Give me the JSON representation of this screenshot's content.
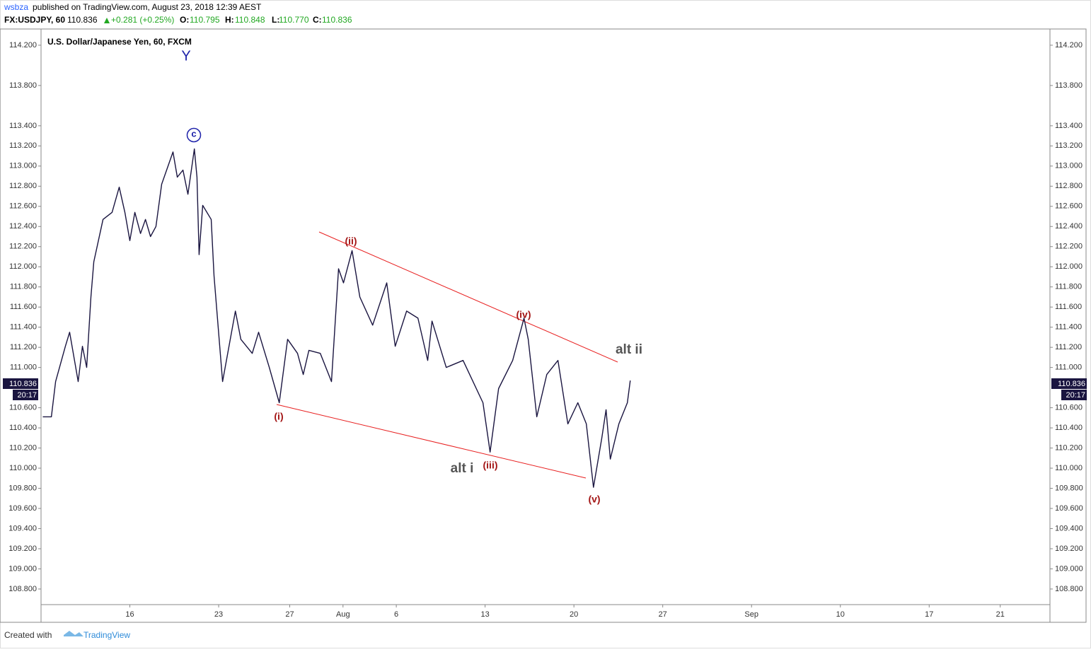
{
  "header": {
    "author": "wsbza",
    "published": "published on TradingView.com, August 23, 2018 12:39 AEST"
  },
  "legend": {
    "symbol": "FX:USDJPY, 60",
    "last": "110.836",
    "change": "+0.281 (+0.25%)",
    "open_label": "O:",
    "open": "110.795",
    "high_label": "H:",
    "high": "110.848",
    "low_label": "L:",
    "low": "110.770",
    "close_label": "C:",
    "close": "110.836"
  },
  "chart_data": {
    "type": "line",
    "title": "U.S. Dollar/Japanese Yen, 60, FXCM",
    "x": [
      -4.9,
      -4.42,
      -4.18,
      -3.63,
      -3.39,
      -2.91,
      -2.67,
      -2.43,
      -2.19,
      -2.03,
      -1.51,
      -1.0,
      -0.6,
      -0.28,
      0,
      0.28,
      0.6,
      0.88,
      1.16,
      1.47,
      1.79,
      2.43,
      2.67,
      2.99,
      3.27,
      3.63,
      3.78,
      3.9,
      4.1,
      4.58,
      4.74,
      5.22,
      5.94,
      6.25,
      6.89,
      7.25,
      7.85,
      8.41,
      8.88,
      9.44,
      9.76,
      10.08,
      10.72,
      11.35,
      11.75,
      12.03,
      12.51,
      12.95,
      13.67,
      14.46,
      14.94,
      15.58,
      16.22,
      16.77,
      17.01,
      17.81,
      18.76,
      19.88,
      20.28,
      20.76,
      21.55,
      22.19,
      22.43,
      22.91,
      23.47,
      24.1,
      24.66,
      25.22,
      25.7,
      26.1,
      26.57,
      26.81,
      27.05,
      27.53,
      28.01,
      28.17
    ],
    "series": [
      {
        "color": "#1a1540",
        "values": [
          110.51,
          110.51,
          110.86,
          111.21,
          111.35,
          110.86,
          111.21,
          111.0,
          111.7,
          112.05,
          112.47,
          112.54,
          112.79,
          112.54,
          112.26,
          112.54,
          112.33,
          112.47,
          112.3,
          112.4,
          112.82,
          113.14,
          112.89,
          112.96,
          112.72,
          113.17,
          112.89,
          112.12,
          112.61,
          112.47,
          111.91,
          110.86,
          111.56,
          111.28,
          111.14,
          111.35,
          111.0,
          110.65,
          111.28,
          111.14,
          110.93,
          111.17,
          111.14,
          110.86,
          111.98,
          111.84,
          112.16,
          111.7,
          111.42,
          111.84,
          111.21,
          111.56,
          111.49,
          111.07,
          111.46,
          111.0,
          111.07,
          110.65,
          110.16,
          110.79,
          111.07,
          111.49,
          111.28,
          110.51,
          110.93,
          111.07,
          110.44,
          110.65,
          110.44,
          109.81,
          110.3,
          110.58,
          110.09,
          110.44,
          110.65,
          110.87
        ]
      }
    ],
    "xlim": [
      -5,
      51.8
    ],
    "xticks": [
      {
        "value": 0,
        "label": "16"
      },
      {
        "value": 5,
        "label": "23"
      },
      {
        "value": 9,
        "label": "27"
      },
      {
        "value": 12,
        "label": "Aug"
      },
      {
        "value": 15,
        "label": "6"
      },
      {
        "value": 20,
        "label": "13"
      },
      {
        "value": 25,
        "label": "20"
      },
      {
        "value": 30,
        "label": "27"
      },
      {
        "value": 35,
        "label": "Sep"
      },
      {
        "value": 40,
        "label": "10"
      },
      {
        "value": 45,
        "label": "17"
      },
      {
        "value": 49,
        "label": "21"
      }
    ],
    "ylim": [
      108.645,
      114.34
    ],
    "yticks": [
      {
        "value": 114.2,
        "label": "114.200"
      },
      {
        "value": 113.8,
        "label": "113.800"
      },
      {
        "value": 113.4,
        "label": "113.400"
      },
      {
        "value": 113.2,
        "label": "113.200"
      },
      {
        "value": 113.0,
        "label": "113.000"
      },
      {
        "value": 112.8,
        "label": "112.800"
      },
      {
        "value": 112.6,
        "label": "112.600"
      },
      {
        "value": 112.4,
        "label": "112.400"
      },
      {
        "value": 112.2,
        "label": "112.200"
      },
      {
        "value": 112.0,
        "label": "112.000"
      },
      {
        "value": 111.8,
        "label": "111.800"
      },
      {
        "value": 111.6,
        "label": "111.600"
      },
      {
        "value": 111.4,
        "label": "111.400"
      },
      {
        "value": 111.2,
        "label": "111.200"
      },
      {
        "value": 111.0,
        "label": "111.000"
      },
      {
        "value": 110.6,
        "label": "110.600"
      },
      {
        "value": 110.4,
        "label": "110.400"
      },
      {
        "value": 110.2,
        "label": "110.200"
      },
      {
        "value": 110.0,
        "label": "110.000"
      },
      {
        "value": 109.8,
        "label": "109.800"
      },
      {
        "value": 109.6,
        "label": "109.600"
      },
      {
        "value": 109.4,
        "label": "109.400"
      },
      {
        "value": 109.2,
        "label": "109.200"
      },
      {
        "value": 109.0,
        "label": "109.000"
      },
      {
        "value": 108.8,
        "label": "108.800"
      }
    ],
    "grid": false,
    "last_price": {
      "value": 110.836,
      "label": "110.836"
    },
    "countdown": "20:17",
    "annotations": [
      {
        "text": "Y",
        "color": "#1e22aa"
      },
      {
        "text": "c",
        "color": "#1e22aa"
      },
      {
        "text": "(i)",
        "color": "#a31515"
      },
      {
        "text": "(ii)",
        "color": "#a31515"
      },
      {
        "text": "(iii)",
        "color": "#a31515"
      },
      {
        "text": "(iv)",
        "color": "#a31515"
      },
      {
        "text": "(v)",
        "color": "#a31515"
      },
      {
        "text": "alt i",
        "color": "#555555"
      },
      {
        "text": "alt ii",
        "color": "#555555"
      }
    ]
  },
  "footer": {
    "created": "Created with",
    "brand": "TradingView"
  }
}
